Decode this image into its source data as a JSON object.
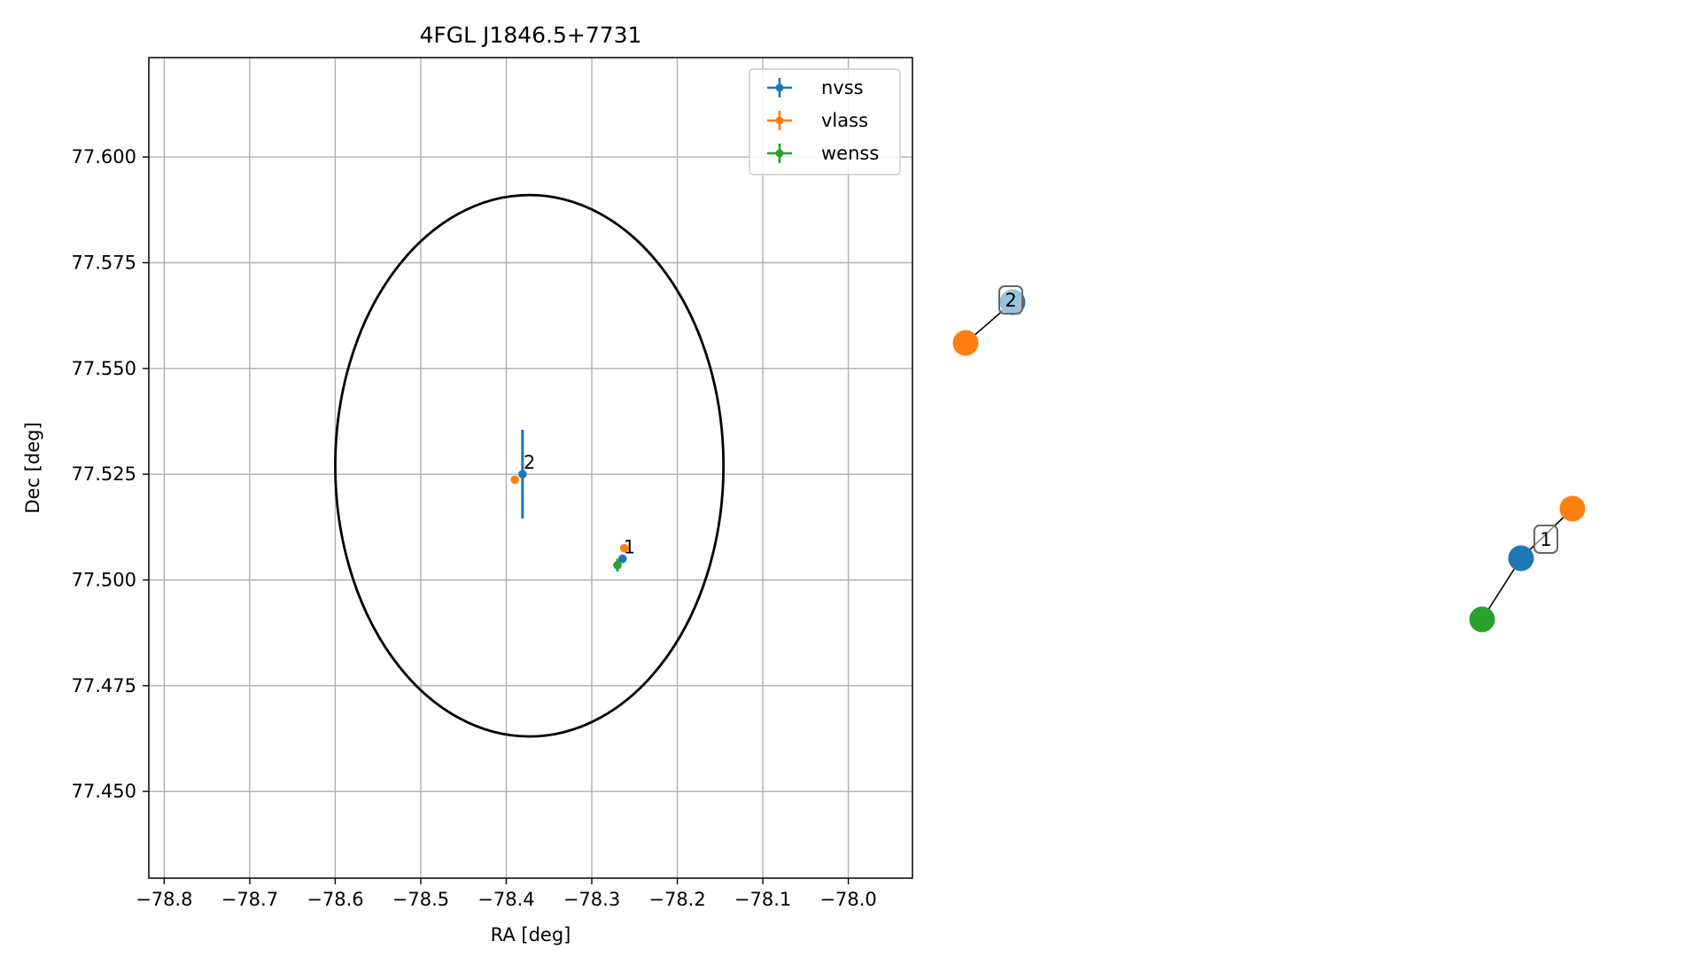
{
  "chart_data": [
    {
      "type": "scatter",
      "title": "4FGL J1846.5+7731",
      "xlabel": "RA [deg]",
      "ylabel": "Dec [deg]",
      "xlim": [
        -78.818,
        -77.925
      ],
      "ylim": [
        77.4295,
        77.6235
      ],
      "xticks": [
        -78.8,
        -78.7,
        -78.6,
        -78.5,
        -78.4,
        -78.3,
        -78.2,
        -78.1,
        -78.0
      ],
      "xtick_labels": [
        "−78.8",
        "−78.7",
        "−78.6",
        "−78.5",
        "−78.4",
        "−78.3",
        "−78.2",
        "−78.1",
        "−78.0"
      ],
      "yticks": [
        77.45,
        77.475,
        77.5,
        77.525,
        77.55,
        77.575,
        77.6
      ],
      "ytick_labels": [
        "77.450",
        "77.475",
        "77.500",
        "77.525",
        "77.550",
        "77.575",
        "77.600"
      ],
      "grid": true,
      "legend_position": "top-right",
      "series": [
        {
          "name": "nvss",
          "color": "#1f77b4",
          "points": [
            {
              "x": -78.381,
              "y": 77.525,
              "yerr": 0.0105,
              "label": "2"
            },
            {
              "x": -78.264,
              "y": 77.505,
              "yerr": 0.001,
              "label": "1"
            }
          ]
        },
        {
          "name": "vlass",
          "color": "#ff7f0e",
          "points": [
            {
              "x": -78.39,
              "y": 77.5237
            },
            {
              "x": -78.262,
              "y": 77.5075
            }
          ]
        },
        {
          "name": "wenss",
          "color": "#2ca02c",
          "points": [
            {
              "x": -78.27,
              "y": 77.5035,
              "yerr": 0.0015
            }
          ]
        }
      ],
      "uncertainty_ellipse": {
        "center_ra": -78.373,
        "center_dec": 77.527,
        "semi_width_ra": 0.227,
        "semi_height_dec": 0.064,
        "color": "#000000"
      }
    },
    {
      "type": "network",
      "node_colors": {
        "nvss": "#1f77b4",
        "vlass": "#ff7f0e",
        "wenss": "#2ca02c"
      },
      "clusters": [
        {
          "label": "2",
          "nodes": [
            "nvss",
            "vlass"
          ]
        },
        {
          "label": "1",
          "nodes": [
            "nvss",
            "vlass",
            "wenss"
          ]
        }
      ]
    }
  ]
}
